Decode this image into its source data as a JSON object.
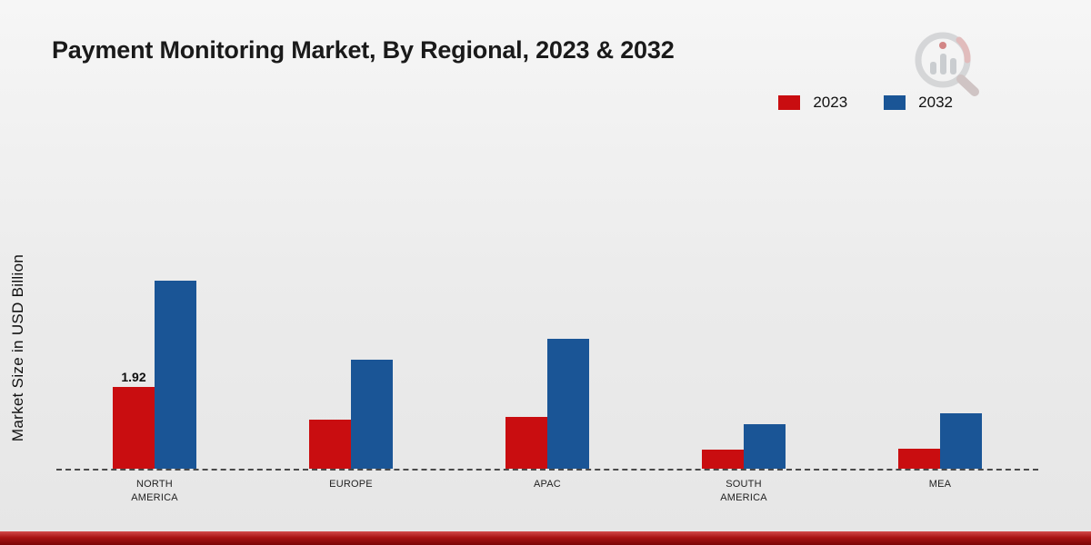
{
  "chart_data": {
    "type": "bar",
    "title": "Payment Monitoring Market, By Regional, 2023 & 2032",
    "ylabel": "Market Size in USD Billion",
    "categories": [
      "NORTH AMERICA",
      "EUROPE",
      "APAC",
      "SOUTH AMERICA",
      "MEA"
    ],
    "series": [
      {
        "name": "2023",
        "color": "#c90d10",
        "values": [
          1.92,
          1.15,
          1.22,
          0.45,
          0.47
        ]
      },
      {
        "name": "2032",
        "color": "#1a5596",
        "values": [
          4.4,
          2.55,
          3.05,
          1.05,
          1.3
        ]
      }
    ],
    "annotations": [
      {
        "series": 0,
        "category": 0,
        "text": "1.92"
      }
    ],
    "legend_position": "top-right",
    "baseline_style": "dashed",
    "grid": false,
    "ylim": [
      0,
      5.5
    ]
  },
  "colors": {
    "background_top": "#f6f6f6",
    "background_bottom": "#e6e6e6",
    "footer_red_top": "#d24b4b",
    "footer_red_bottom": "#7c0606",
    "title_color": "#1a1a1a",
    "baseline_color": "#4a4a4a"
  }
}
